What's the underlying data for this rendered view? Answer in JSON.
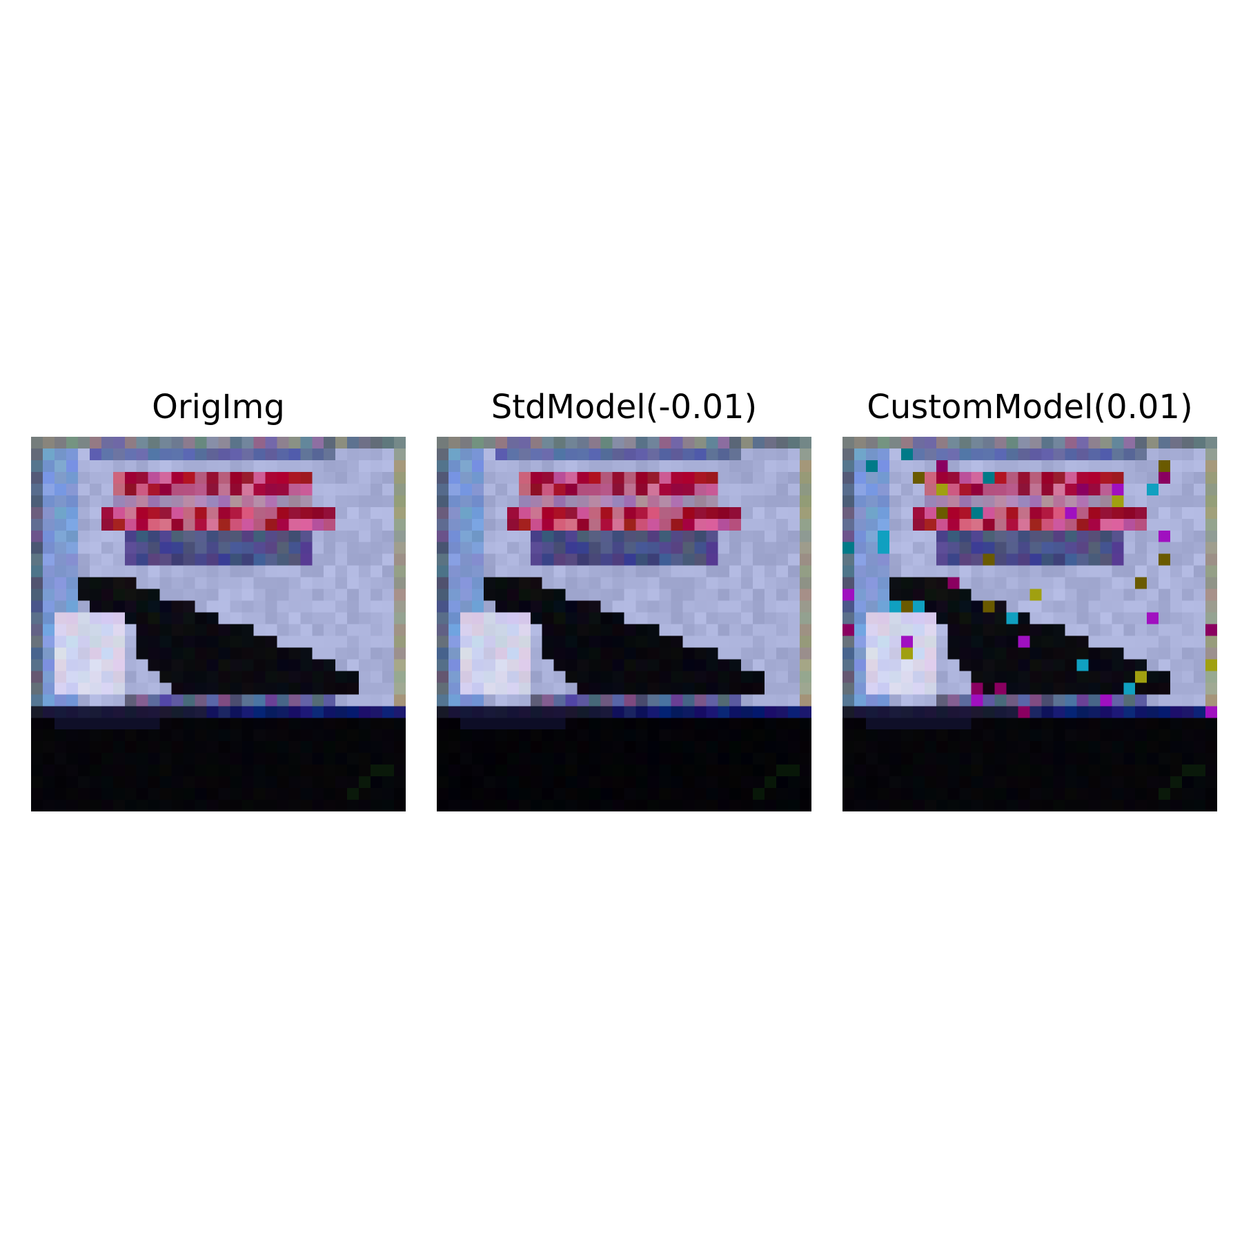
{
  "figure": {
    "panels": [
      {
        "title": "OrigImg",
        "variant": "original"
      },
      {
        "title": "StdModel(-0.01)",
        "variant": "std"
      },
      {
        "title": "CustomModel(0.01)",
        "variant": "custom"
      }
    ]
  },
  "image_content": {
    "description_colors": {
      "sky": "#a9b0d8",
      "banner_red": "#a01030",
      "banner_text": "#4a4f86",
      "wedge": "#05050c",
      "ground": "#020206",
      "water_band": "#141c6a"
    },
    "noise_colors": [
      "#a010c0",
      "#10a0c0",
      "#a0a010",
      "#007a88",
      "#6a5a00",
      "#8a0060"
    ]
  }
}
